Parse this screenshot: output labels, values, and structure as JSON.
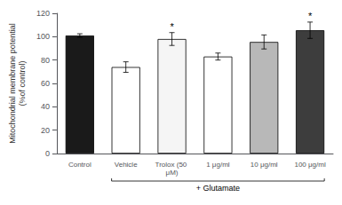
{
  "chart_data": {
    "type": "bar",
    "categories": [
      "Control",
      "Vehicle",
      "Trolox (50 μM)",
      "1 μg/ml",
      "10 μg/ml",
      "100 μg/ml"
    ],
    "values": [
      101.0,
      74.0,
      98.0,
      83.0,
      95.5,
      105.5
    ],
    "errors": [
      1.5,
      4.5,
      5.5,
      3.0,
      6.0,
      7.0
    ],
    "colors": [
      "#1a1a1a",
      "#ffffff",
      "#f5f5f5",
      "#ffffff",
      "#b8b8b8",
      "#3d3d3d"
    ],
    "ylabel": "Mitochondrial membrane potential\n(%of control)",
    "ylim": [
      0,
      120
    ],
    "yticks": [
      0,
      20,
      40,
      60,
      80,
      100,
      120
    ],
    "grid": false,
    "annotations": [
      {
        "text": "*",
        "category": "Trolox (50 μM)"
      },
      {
        "text": "*",
        "category": "100 μg/ml"
      }
    ],
    "bracket": {
      "text": "+ Glutamate",
      "from": "Vehicle",
      "to": "100 μg/ml"
    }
  }
}
